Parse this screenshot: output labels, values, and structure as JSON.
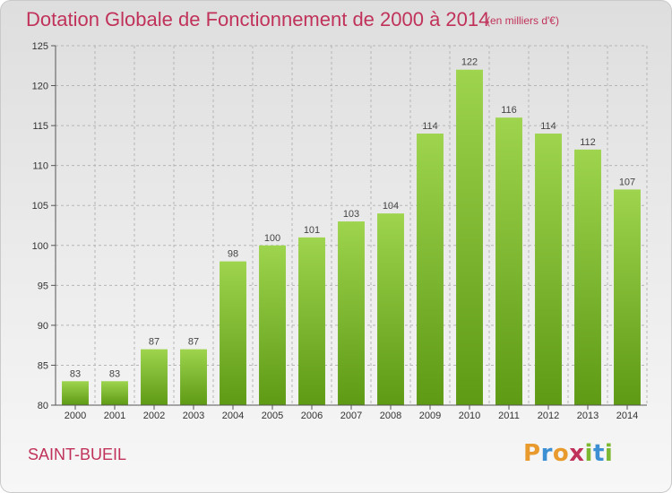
{
  "title": "Dotation Globale de Fonctionnement de 2000 à 2014",
  "subtitle": "(en milliers d'€)",
  "commune": "SAINT-BUEIL",
  "logo": {
    "letters": [
      "P",
      "r",
      "o",
      "x",
      "i",
      "t",
      "i"
    ],
    "colors": [
      "#e89a2c",
      "#3d8fd4",
      "#e89a2c",
      "#c0325a",
      "#7db832",
      "#3d8fd4",
      "#7db832"
    ]
  },
  "colors": {
    "title": "#c0325a",
    "bar_top": "#9ed44e",
    "bar_bottom": "#5e9a14",
    "grid": "#b5b5b5"
  },
  "chart_data": {
    "type": "bar",
    "categories": [
      "2000",
      "2001",
      "2002",
      "2003",
      "2004",
      "2005",
      "2006",
      "2007",
      "2008",
      "2009",
      "2010",
      "2011",
      "2012",
      "2013",
      "2014"
    ],
    "values": [
      83,
      83,
      87,
      87,
      98,
      100,
      101,
      103,
      104,
      114,
      122,
      116,
      114,
      112,
      107
    ],
    "ylim": [
      80,
      125
    ],
    "yticks": [
      80,
      85,
      90,
      95,
      100,
      105,
      110,
      115,
      120,
      125
    ],
    "grid": true,
    "legend": "none"
  }
}
